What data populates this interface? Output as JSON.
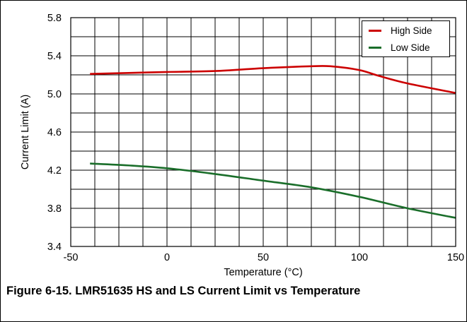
{
  "caption": "Figure 6-15. LMR51635 HS and LS Current Limit vs Temperature",
  "chart_data": {
    "type": "line",
    "xlabel": "Temperature (°C)",
    "ylabel": "Current Limit (A)",
    "xlim": [
      -50,
      150
    ],
    "ylim": [
      3.4,
      5.8
    ],
    "x_ticks": [
      "-50",
      "0",
      "50",
      "100",
      "150"
    ],
    "y_ticks": [
      "3.4",
      "3.8",
      "4.2",
      "4.6",
      "5.0",
      "5.4",
      "5.8"
    ],
    "x_tick_values": [
      -50,
      0,
      50,
      100,
      150
    ],
    "y_tick_values": [
      3.4,
      3.8,
      4.2,
      4.6,
      5.0,
      5.4,
      5.8
    ],
    "x_grid_step": 12.5,
    "y_grid_step": 0.2,
    "grid": true,
    "legend_position": "top-right",
    "series": [
      {
        "name": "High Side",
        "color": "#cc0000",
        "x": [
          -40,
          -20,
          0,
          25,
          50,
          75,
          85,
          100,
          110,
          125,
          150
        ],
        "y": [
          5.21,
          5.22,
          5.23,
          5.24,
          5.27,
          5.29,
          5.29,
          5.25,
          5.19,
          5.11,
          5.01
        ]
      },
      {
        "name": "Low Side",
        "color": "#1a6e2a",
        "x": [
          -40,
          -20,
          0,
          25,
          50,
          75,
          100,
          125,
          150
        ],
        "y": [
          4.27,
          4.25,
          4.22,
          4.16,
          4.09,
          4.02,
          3.92,
          3.8,
          3.7
        ]
      }
    ]
  }
}
